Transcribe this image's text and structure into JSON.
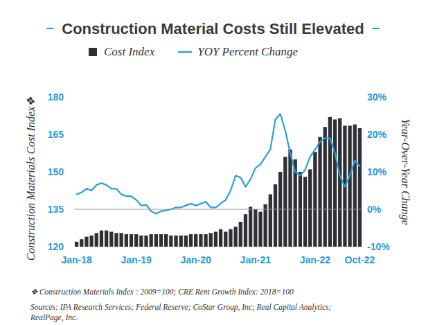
{
  "chart_data": {
    "type": "bar",
    "title": "Construction Material Costs Still Elevated",
    "y_label": "Construction Materials Cost Index❖",
    "y2_label": "Year-Over-Year Change",
    "categories": [
      "Jan-18",
      null,
      null,
      null,
      null,
      null,
      null,
      null,
      null,
      null,
      null,
      null,
      "Jan-19",
      null,
      null,
      null,
      null,
      null,
      null,
      null,
      null,
      null,
      null,
      null,
      "Jan-20",
      null,
      null,
      null,
      null,
      null,
      null,
      null,
      null,
      null,
      null,
      null,
      "Jan-21",
      null,
      null,
      null,
      null,
      null,
      null,
      null,
      null,
      null,
      null,
      null,
      "Jan-22",
      null,
      null,
      null,
      null,
      null,
      null,
      null,
      null,
      "Oct-22"
    ],
    "series": [
      {
        "name": "Cost Index",
        "type": "bar",
        "color": "#2d3035",
        "axis": "y",
        "values": [
          122,
          123,
          124,
          124.5,
          125.5,
          126.5,
          126.5,
          126,
          125.5,
          125.5,
          125,
          125,
          125,
          124.5,
          124.5,
          125,
          125,
          125,
          125,
          124.5,
          124.5,
          124.5,
          124.5,
          125,
          125,
          125,
          125,
          125.5,
          126,
          127,
          126,
          127,
          128,
          130,
          133,
          136,
          135,
          134,
          137,
          141,
          145,
          150,
          156,
          159,
          155,
          150,
          148,
          151,
          158,
          164,
          168,
          172,
          171,
          171.5,
          168.5,
          168.5,
          169,
          167.5
        ]
      },
      {
        "name": "YOY Percent Change",
        "type": "line",
        "color": "#2b9fd9",
        "axis": "y2",
        "values": [
          4,
          4.5,
          5.5,
          5,
          6.5,
          7,
          6.5,
          5.5,
          5.5,
          4,
          3.5,
          3.5,
          2.5,
          1,
          1.2,
          -0.5,
          -1.2,
          -0.5,
          -0.3,
          0,
          0.5,
          0.5,
          1,
          1.5,
          1,
          1.5,
          2,
          0.5,
          0.5,
          1.5,
          2.5,
          5,
          9,
          8.5,
          6,
          8,
          11,
          12,
          14,
          16,
          24,
          25.5,
          21,
          15,
          10,
          9,
          10.5,
          14,
          16,
          18,
          19,
          19,
          15,
          9,
          6,
          9,
          13,
          11.5
        ]
      }
    ],
    "ylim": [
      120,
      180
    ],
    "yticks": [
      120,
      135,
      150,
      165,
      180
    ],
    "y2lim": [
      -10,
      30
    ],
    "y2ticks": [
      {
        "value": -10,
        "label": "-10%"
      },
      {
        "value": 0,
        "label": "0%"
      },
      {
        "value": 10,
        "label": "10%"
      },
      {
        "value": 20,
        "label": "20%"
      },
      {
        "value": 30,
        "label": "30%"
      }
    ],
    "legend": "top",
    "grid": false,
    "notes": [
      "❖ Construction Materials Index : 2009=100; CRE Rent Growth Index: 2018=100",
      "Sources: IPA Research Services; Federal Reserve; CoStar Group, Inc; Real Capital Analytics;",
      "RealPage, Inc."
    ]
  }
}
